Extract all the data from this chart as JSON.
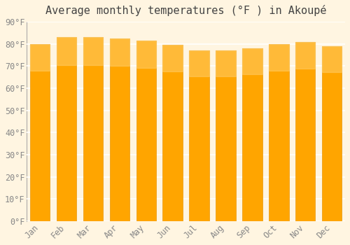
{
  "title": "Average monthly temperatures (°F ) in Akoupé",
  "months": [
    "Jan",
    "Feb",
    "Mar",
    "Apr",
    "May",
    "Jun",
    "Jul",
    "Aug",
    "Sep",
    "Oct",
    "Nov",
    "Dec"
  ],
  "values": [
    80.0,
    83.0,
    83.0,
    82.5,
    81.5,
    79.5,
    77.0,
    77.0,
    78.0,
    80.0,
    81.0,
    79.0
  ],
  "bar_color_main": "#FFA500",
  "bar_color_gradient_top": "#FFC04C",
  "bar_color_gradient_bottom": "#FF9500",
  "background_color": "#FFF5E1",
  "grid_color": "#FFFFFF",
  "ylim": [
    0,
    90
  ],
  "yticks": [
    0,
    10,
    20,
    30,
    40,
    50,
    60,
    70,
    80,
    90
  ],
  "title_fontsize": 11,
  "tick_fontsize": 8.5,
  "tick_color": "#888888"
}
